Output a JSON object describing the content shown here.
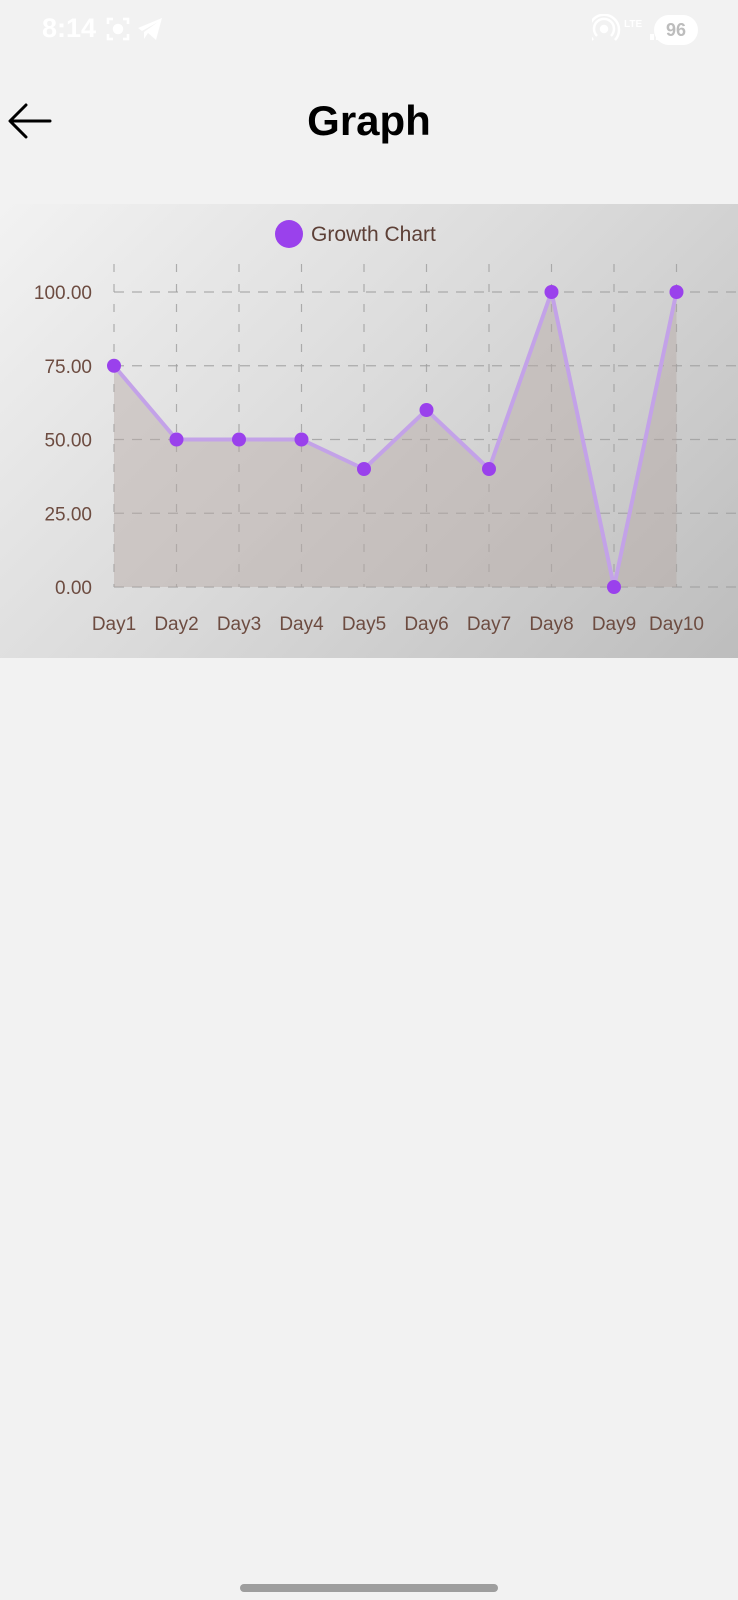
{
  "status_bar": {
    "time": "8:14",
    "battery": "96",
    "network": "LTE"
  },
  "header": {
    "title": "Graph",
    "back_icon": "arrow-left-icon"
  },
  "colors": {
    "accent": "#9a41ec",
    "line": "#c3a2e8",
    "area_fill": "#b5a9a5",
    "axis_text": "#6d4c41",
    "grid": "#9e9e9e",
    "legend_text": "#5d4037"
  },
  "chart_data": {
    "type": "area",
    "title": "",
    "legend": {
      "position": "top-center"
    },
    "categories": [
      "Day1",
      "Day2",
      "Day3",
      "Day4",
      "Day5",
      "Day6",
      "Day7",
      "Day8",
      "Day9",
      "Day10"
    ],
    "series": [
      {
        "name": "Growth Chart",
        "values": [
          75,
          50,
          50,
          50,
          40,
          60,
          40,
          100,
          0,
          100
        ]
      }
    ],
    "y_ticks": [
      "0.00",
      "25.00",
      "50.00",
      "75.00",
      "100.00"
    ],
    "ylim": [
      0,
      100
    ],
    "xlabel": "",
    "ylabel": "",
    "grid": true,
    "grid_style": "dashed"
  }
}
